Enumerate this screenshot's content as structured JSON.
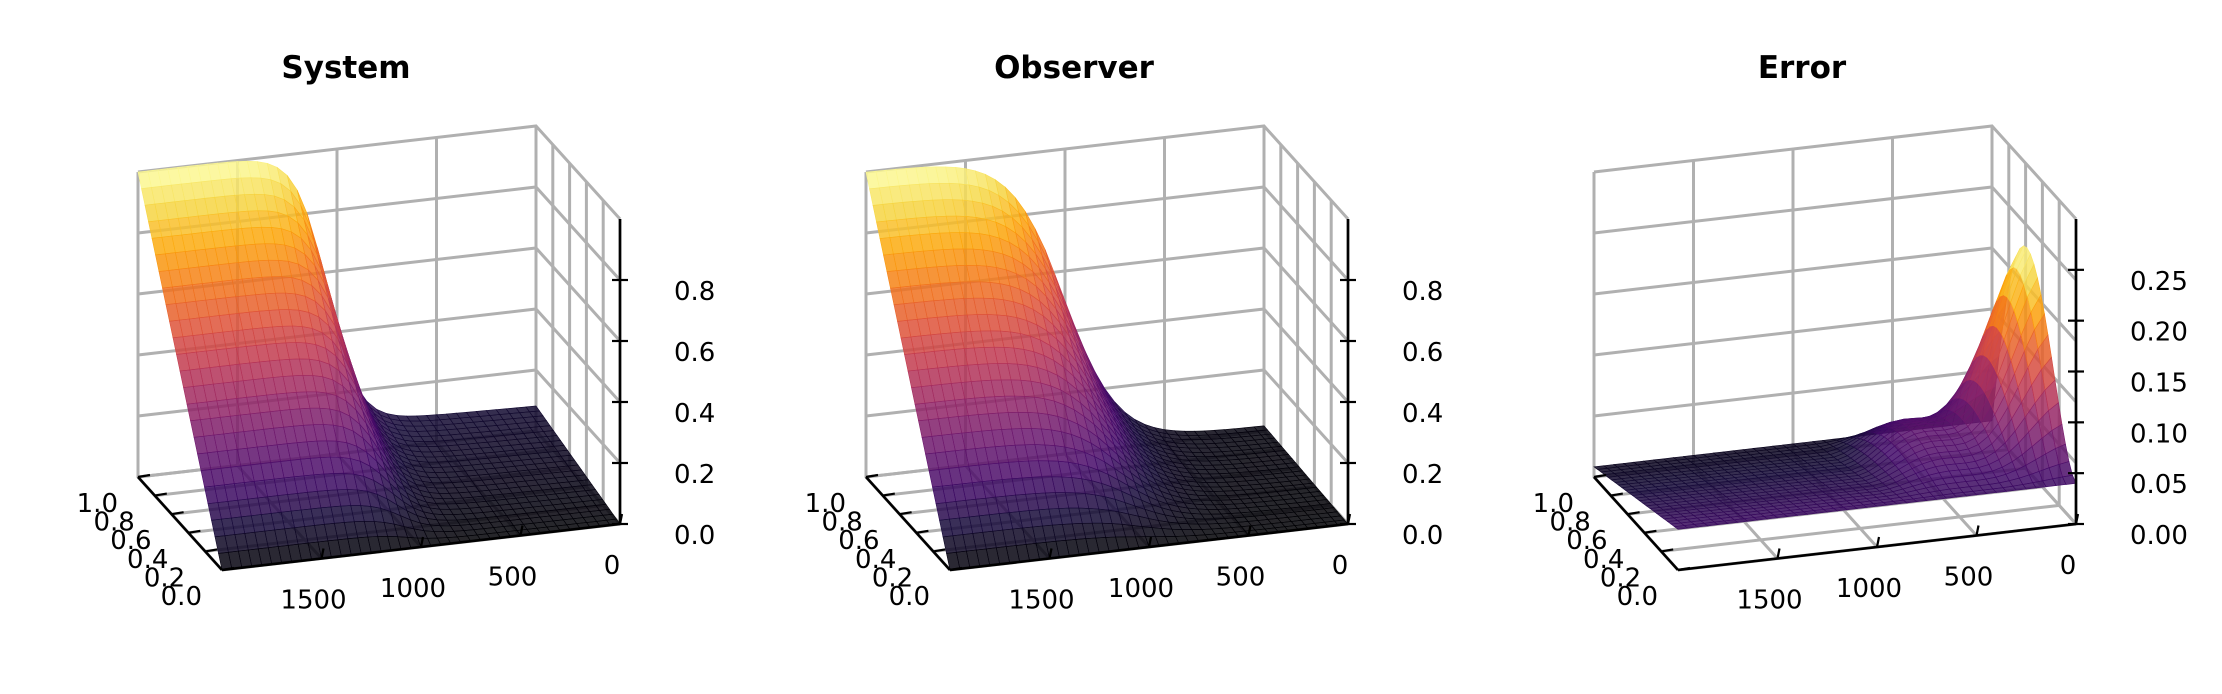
{
  "chart_data": [
    {
      "type": "surface3d",
      "title": "System",
      "surface": "system",
      "x_range": [
        0,
        2000
      ],
      "y_range": [
        0,
        1
      ],
      "x_ticks": [
        "0",
        "500",
        "1000",
        "1500"
      ],
      "y_ticks": [
        "0.0",
        "0.2",
        "0.4",
        "0.6",
        "0.8",
        "1.0"
      ],
      "z_ticks": [
        "0.0",
        "0.2",
        "0.4",
        "0.6",
        "0.8"
      ],
      "z_range": [
        0,
        1
      ],
      "colormap": "inferno",
      "grid": true
    },
    {
      "type": "surface3d",
      "title": "Observer",
      "surface": "observer",
      "x_range": [
        0,
        2000
      ],
      "y_range": [
        0,
        1
      ],
      "x_ticks": [
        "0",
        "500",
        "1000",
        "1500"
      ],
      "y_ticks": [
        "0.0",
        "0.2",
        "0.4",
        "0.6",
        "0.8",
        "1.0"
      ],
      "z_ticks": [
        "0.0",
        "0.2",
        "0.4",
        "0.6",
        "0.8"
      ],
      "z_range": [
        0,
        1
      ],
      "colormap": "inferno",
      "grid": true
    },
    {
      "type": "surface3d",
      "title": "Error",
      "surface": "error",
      "x_range": [
        0,
        2000
      ],
      "y_range": [
        0,
        1
      ],
      "x_ticks": [
        "0",
        "500",
        "1000",
        "1500"
      ],
      "y_ticks": [
        "0.0",
        "0.2",
        "0.4",
        "0.6",
        "0.8",
        "1.0"
      ],
      "z_ticks": [
        "0.00",
        "0.05",
        "0.10",
        "0.15",
        "0.20",
        "0.25"
      ],
      "z_range": [
        0,
        0.3
      ],
      "colormap": "inferno",
      "grid": true
    }
  ]
}
